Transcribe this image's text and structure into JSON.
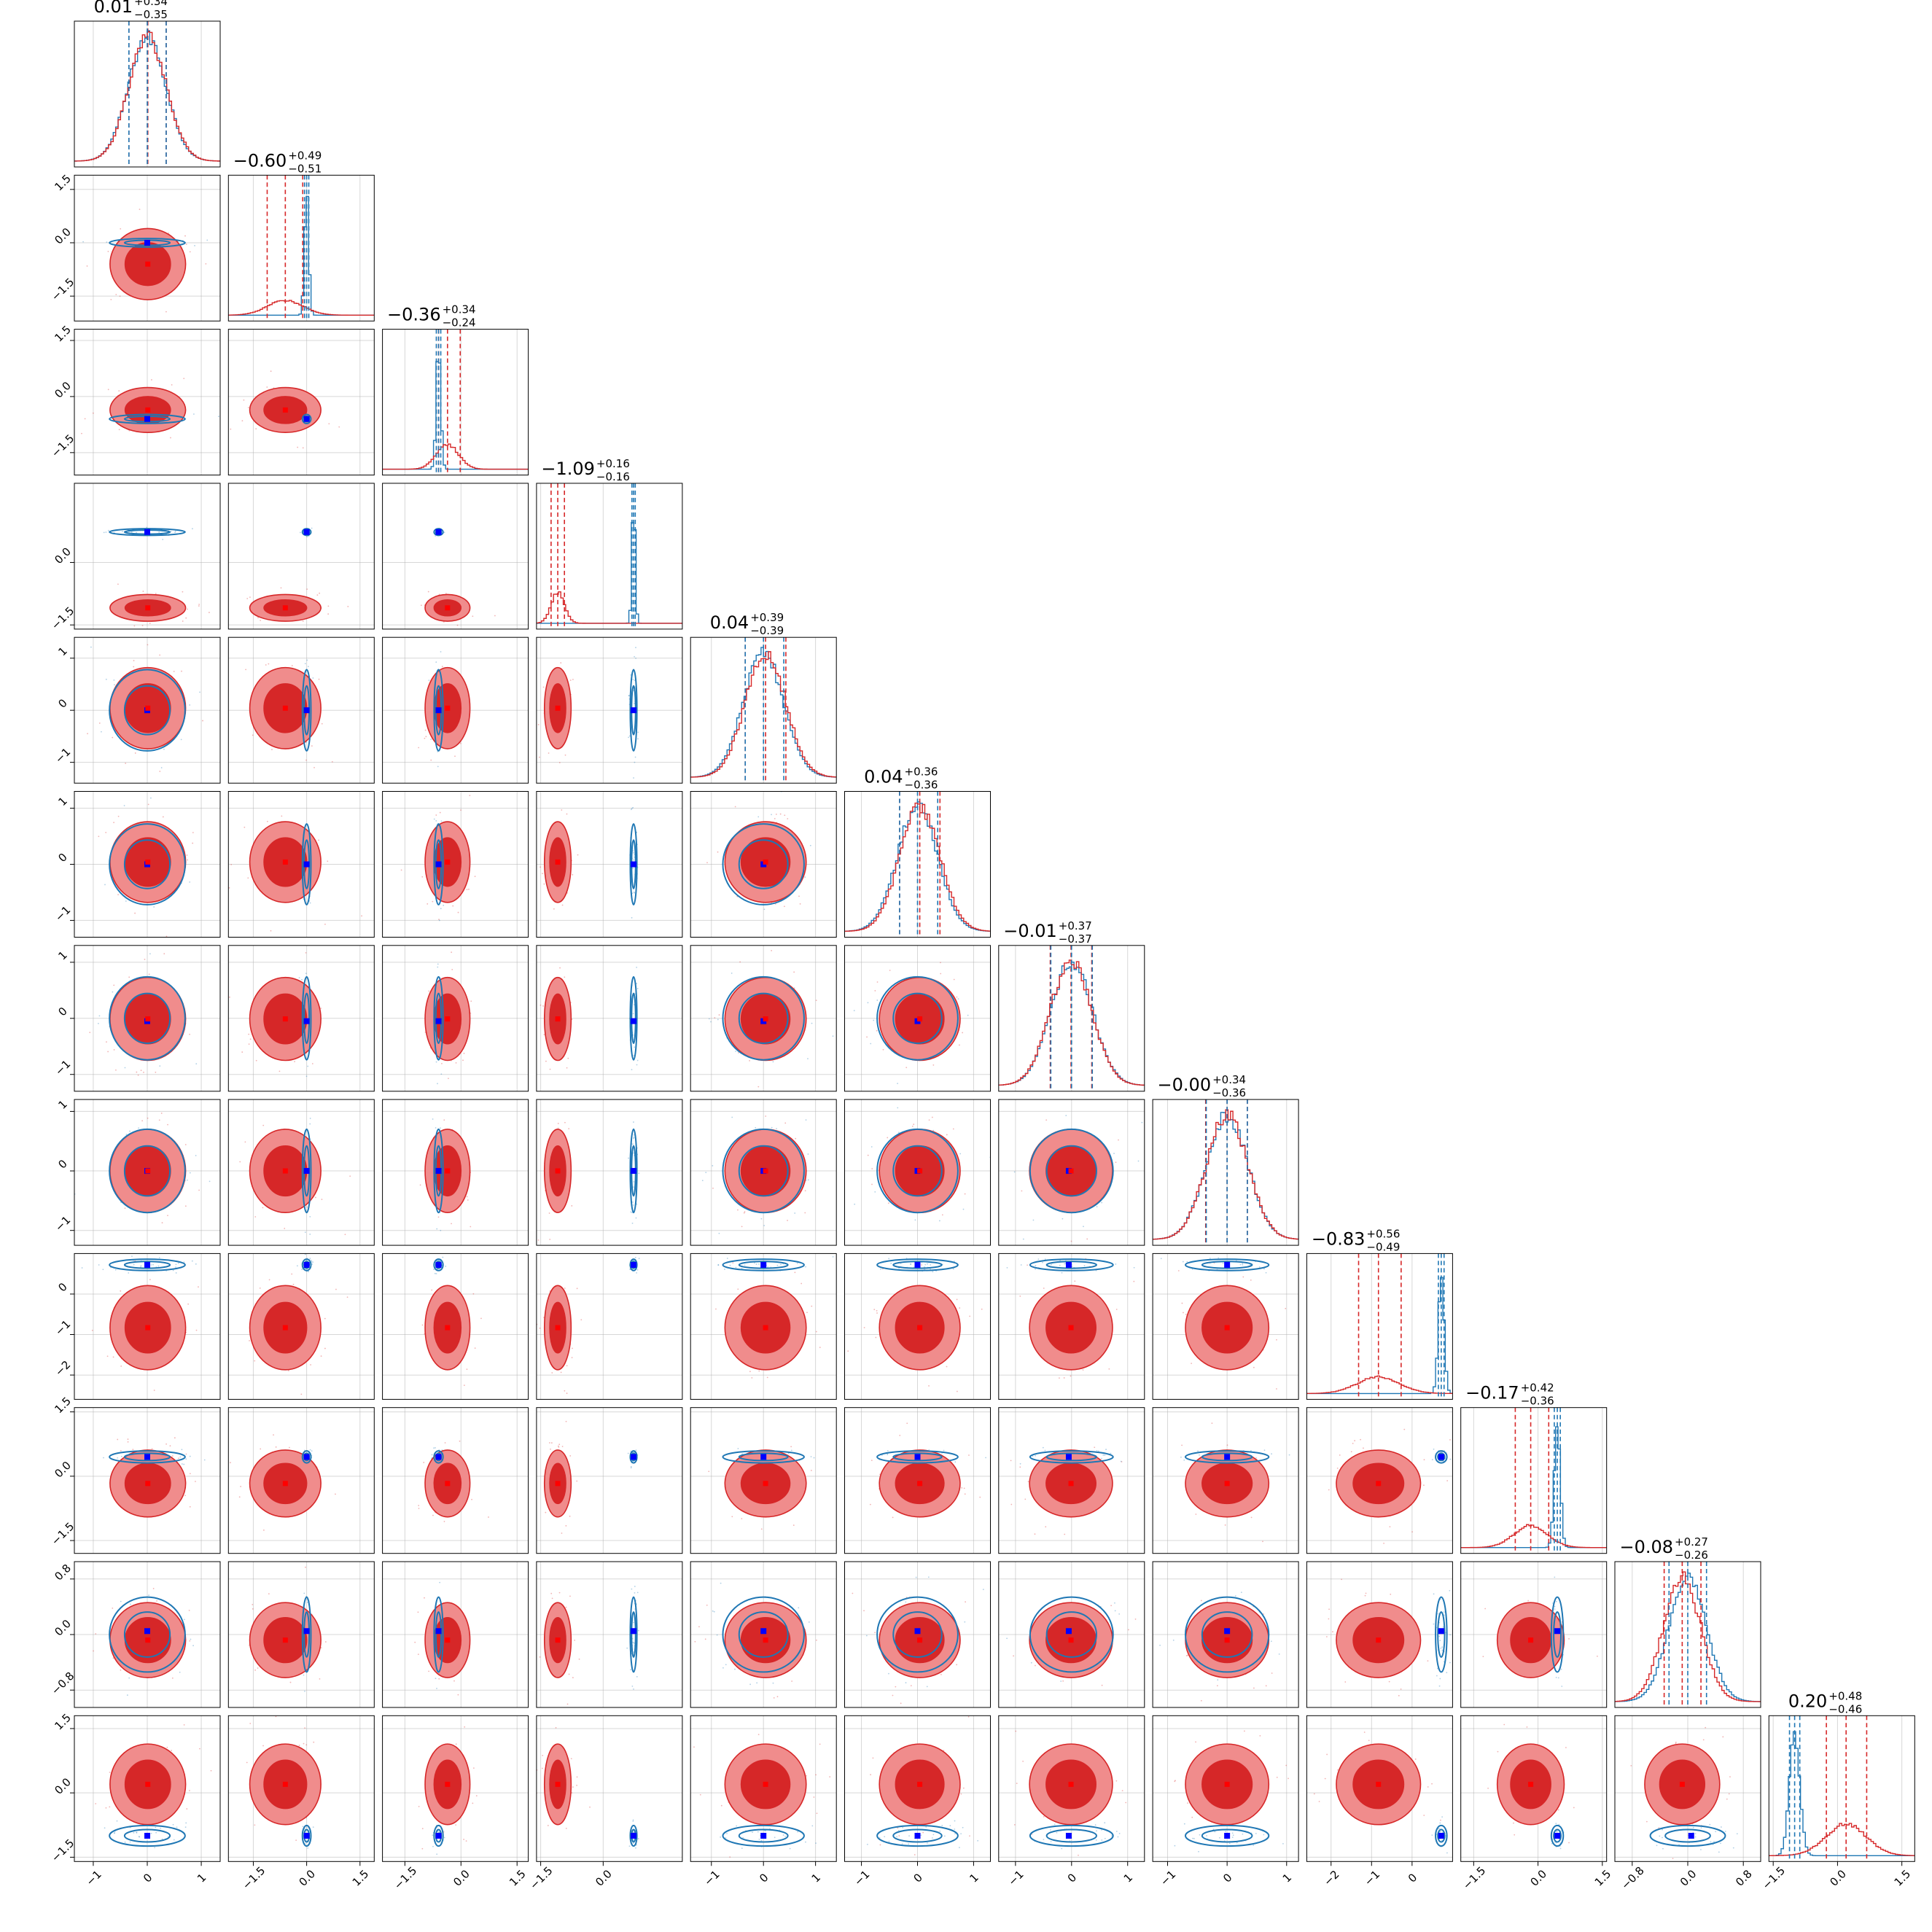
{
  "chart_data": {
    "type": "corner",
    "n_params": 12,
    "series": [
      {
        "name": "",
        "color": "#d62728",
        "fill_colors": [
          "#f08c8c",
          "#d62728"
        ]
      },
      {
        "name": "",
        "color": "#1f77b4"
      }
    ],
    "marker_colors": {
      "blue_truth": "#0000ff",
      "red_truth": "#ff0000"
    },
    "titles": [
      {
        "main": "0.01",
        "plus": "+0.34",
        "minus": "−0.35"
      },
      {
        "main": "−0.60",
        "plus": "+0.49",
        "minus": "−0.51"
      },
      {
        "main": "−0.36",
        "plus": "+0.34",
        "minus": "−0.24"
      },
      {
        "main": "−1.09",
        "plus": "+0.16",
        "minus": "−0.16"
      },
      {
        "main": "0.04",
        "plus": "+0.39",
        "minus": "−0.39"
      },
      {
        "main": "0.04",
        "plus": "+0.36",
        "minus": "−0.36"
      },
      {
        "main": "−0.01",
        "plus": "+0.37",
        "minus": "−0.37"
      },
      {
        "main": "−0.00",
        "plus": "+0.34",
        "minus": "−0.36"
      },
      {
        "main": "−0.83",
        "plus": "+0.56",
        "minus": "−0.49"
      },
      {
        "main": "−0.17",
        "plus": "+0.42",
        "minus": "−0.36"
      },
      {
        "main": "−0.08",
        "plus": "+0.27",
        "minus": "−0.26"
      },
      {
        "main": "0.20",
        "plus": "+0.48",
        "minus": "−0.46"
      }
    ],
    "x_ranges": [
      [
        -1.35,
        1.35
      ],
      [
        -2.2,
        1.9
      ],
      [
        -2.1,
        1.8
      ],
      [
        -1.6,
        1.9
      ],
      [
        -1.4,
        1.4
      ],
      [
        -1.3,
        1.3
      ],
      [
        -1.3,
        1.3
      ],
      [
        -1.25,
        1.2
      ],
      [
        -2.6,
        1.0
      ],
      [
        -1.8,
        1.6
      ],
      [
        -1.05,
        1.05
      ],
      [
        -1.6,
        1.8
      ]
    ],
    "y_ranges": [
      null,
      [
        -2.2,
        1.9
      ],
      [
        -2.1,
        1.8
      ],
      [
        -1.6,
        1.9
      ],
      [
        -1.4,
        1.4
      ],
      [
        -1.3,
        1.3
      ],
      [
        -1.3,
        1.3
      ],
      [
        -1.25,
        1.2
      ],
      [
        -2.6,
        1.0
      ],
      [
        -1.8,
        1.6
      ],
      [
        -1.05,
        1.05
      ],
      [
        -1.6,
        1.8
      ]
    ],
    "x_tick_labels": [
      {
        "values": [
          -1,
          0,
          1
        ],
        "labels": [
          "−1",
          "0",
          "1"
        ]
      },
      {
        "values": [
          -1.5,
          0.0,
          1.5
        ],
        "labels": [
          "−1.5",
          "0.0",
          "1.5"
        ]
      },
      {
        "values": [
          -1.5,
          0.0,
          1.5
        ],
        "labels": [
          "−1.5",
          "0.0",
          "1.5"
        ]
      },
      {
        "values": [
          -1.5,
          0.0
        ],
        "labels": [
          "−1.5",
          "0.0"
        ]
      },
      {
        "values": [
          -1,
          0,
          1
        ],
        "labels": [
          "−1",
          "0",
          "1"
        ]
      },
      {
        "values": [
          -1,
          0,
          1
        ],
        "labels": [
          "−1",
          "0",
          "1"
        ]
      },
      {
        "values": [
          -1,
          0,
          1
        ],
        "labels": [
          "−1",
          "0",
          "1"
        ]
      },
      {
        "values": [
          -1,
          0,
          1
        ],
        "labels": [
          "−1",
          "0",
          "1"
        ]
      },
      {
        "values": [
          -2,
          -1,
          0
        ],
        "labels": [
          "−2",
          "−1",
          "0"
        ]
      },
      {
        "values": [
          -1.5,
          0.0,
          1.5
        ],
        "labels": [
          "−1.5",
          "0.0",
          "1.5"
        ]
      },
      {
        "values": [
          -0.8,
          0.0,
          0.8
        ],
        "labels": [
          "−0.8",
          "0.0",
          "0.8"
        ]
      },
      {
        "values": [
          -1.5,
          0.0,
          1.5
        ],
        "labels": [
          "−1.5",
          "0.0",
          "1.5"
        ]
      }
    ],
    "y_tick_labels": [
      null,
      {
        "values": [
          -1.5,
          0.0,
          1.5
        ],
        "labels": [
          "−1.5",
          "0.0",
          "1.5"
        ]
      },
      {
        "values": [
          -1.5,
          0.0,
          1.5
        ],
        "labels": [
          "−1.5",
          "0.0",
          "1.5"
        ]
      },
      {
        "values": [
          -1.5,
          0.0
        ],
        "labels": [
          "−1.5",
          "0.0"
        ]
      },
      {
        "values": [
          -1,
          0,
          1
        ],
        "labels": [
          "−1",
          "0",
          "1"
        ]
      },
      {
        "values": [
          -1,
          0,
          1
        ],
        "labels": [
          "−1",
          "0",
          "1"
        ]
      },
      {
        "values": [
          -1,
          0,
          1
        ],
        "labels": [
          "−1",
          "0",
          "1"
        ]
      },
      {
        "values": [
          -1,
          0,
          1
        ],
        "labels": [
          "−1",
          "0",
          "1"
        ]
      },
      {
        "values": [
          -2,
          -1,
          0
        ],
        "labels": [
          "−2",
          "−1",
          "0"
        ]
      },
      {
        "values": [
          -1.5,
          0.0,
          1.5
        ],
        "labels": [
          "−1.5",
          "0.0",
          "1.5"
        ]
      },
      {
        "values": [
          -0.8,
          0.0,
          0.8
        ],
        "labels": [
          "−0.8",
          "0.0",
          "0.8"
        ]
      },
      {
        "values": [
          -1.5,
          0.0,
          1.5
        ],
        "labels": [
          "−1.5",
          "0.0",
          "1.5"
        ]
      }
    ],
    "red_posterior": {
      "mean": [
        0.01,
        -0.6,
        -0.36,
        -1.09,
        0.04,
        0.04,
        -0.01,
        -0.0,
        -0.83,
        -0.17,
        -0.08,
        0.2
      ],
      "sd": [
        0.35,
        0.5,
        0.3,
        0.16,
        0.39,
        0.36,
        0.37,
        0.35,
        0.52,
        0.39,
        0.27,
        0.47
      ]
    },
    "blue_posterior": {
      "mean": [
        0.0,
        0.0,
        -0.6,
        0.73,
        0.0,
        0.0,
        0.0,
        0.0,
        0.72,
        0.45,
        0.0,
        -1.0
      ],
      "sd": [
        0.35,
        0.06,
        0.06,
        0.04,
        0.39,
        0.36,
        0.37,
        0.35,
        0.07,
        0.07,
        0.27,
        0.12
      ]
    },
    "truth": [
      0.0,
      0.0,
      -0.6,
      0.73,
      0.0,
      0.0,
      -0.05,
      0.0,
      0.72,
      0.45,
      0.05,
      -1.0
    ],
    "red_quantile_lines": [
      [
        -0.34,
        0.01,
        0.35
      ],
      [
        -1.11,
        -0.6,
        -0.11
      ],
      [
        -0.6,
        -0.36,
        -0.02
      ],
      [
        -1.25,
        -1.09,
        -0.93
      ],
      [
        -0.35,
        0.04,
        0.43
      ],
      [
        -0.32,
        0.04,
        0.4
      ],
      [
        -0.38,
        -0.01,
        0.36
      ],
      [
        -0.36,
        0.0,
        0.34
      ],
      [
        -1.32,
        -0.83,
        -0.27
      ],
      [
        -0.53,
        -0.17,
        0.25
      ],
      [
        -0.34,
        -0.08,
        0.19
      ],
      [
        -0.26,
        0.2,
        0.68
      ]
    ],
    "blue_quantile_lines": [
      [
        -0.34,
        0.0,
        0.35
      ],
      [
        -0.06,
        0.0,
        0.06
      ],
      [
        -0.66,
        -0.6,
        -0.54
      ],
      [
        0.69,
        0.73,
        0.77
      ],
      [
        -0.35,
        0.0,
        0.39
      ],
      [
        -0.32,
        0.0,
        0.36
      ],
      [
        -0.37,
        0.0,
        0.37
      ],
      [
        -0.35,
        0.0,
        0.34
      ],
      [
        0.65,
        0.72,
        0.79
      ],
      [
        0.38,
        0.45,
        0.52
      ],
      [
        -0.27,
        0.0,
        0.27
      ],
      [
        -1.12,
        -1.0,
        -0.88
      ]
    ]
  }
}
